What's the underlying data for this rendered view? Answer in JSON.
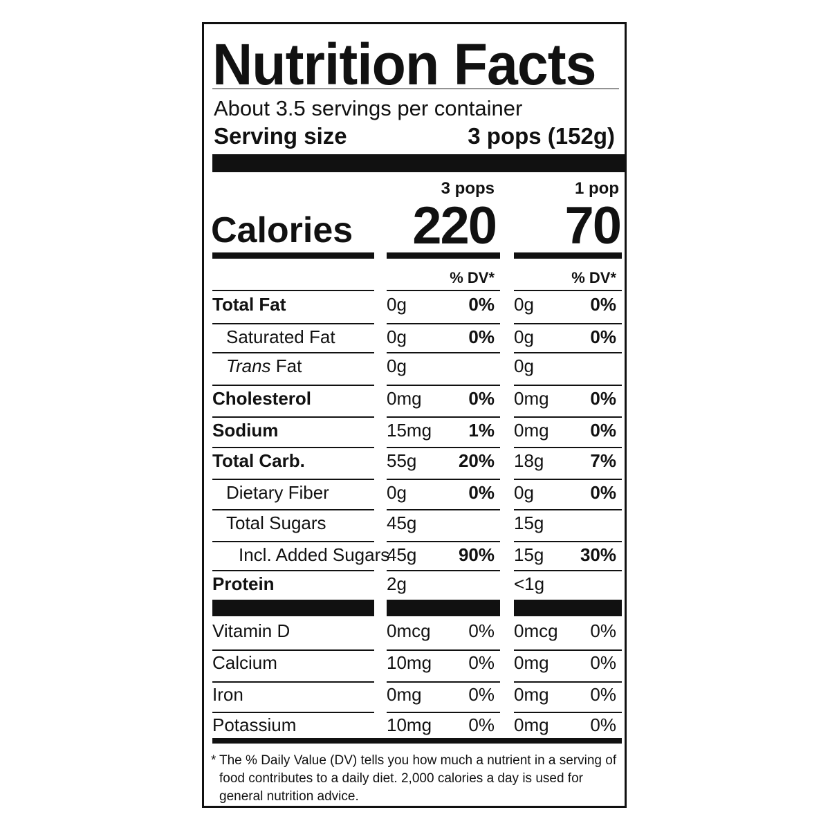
{
  "title": "Nutrition Facts",
  "servings_per_container": "About 3.5 servings per container",
  "serving_size_label": "Serving size",
  "serving_size_value": "3 pops (152g)",
  "columns": [
    {
      "header": "3 pops",
      "calories": "220"
    },
    {
      "header": "1 pop",
      "calories": "70"
    }
  ],
  "calories_label": "Calories",
  "dv_header": "% DV*",
  "nutrients": [
    {
      "name": "Total Fat",
      "bold": true,
      "indent": 0,
      "c1": {
        "amount": "0g",
        "dv": "0%"
      },
      "c2": {
        "amount": "0g",
        "dv": "0%"
      }
    },
    {
      "name": "Saturated Fat",
      "bold": false,
      "indent": 1,
      "c1": {
        "amount": "0g",
        "dv": "0%"
      },
      "c2": {
        "amount": "0g",
        "dv": "0%"
      }
    },
    {
      "name_italic": "Trans",
      "name": " Fat",
      "bold": false,
      "indent": 1,
      "c1": {
        "amount": "0g",
        "dv": ""
      },
      "c2": {
        "amount": "0g",
        "dv": ""
      }
    },
    {
      "name": "Cholesterol",
      "bold": true,
      "indent": 0,
      "c1": {
        "amount": "0mg",
        "dv": "0%"
      },
      "c2": {
        "amount": "0mg",
        "dv": "0%"
      }
    },
    {
      "name": "Sodium",
      "bold": true,
      "indent": 0,
      "c1": {
        "amount": "15mg",
        "dv": "1%"
      },
      "c2": {
        "amount": "0mg",
        "dv": "0%"
      }
    },
    {
      "name": "Total Carb.",
      "bold": true,
      "indent": 0,
      "c1": {
        "amount": "55g",
        "dv": "20%"
      },
      "c2": {
        "amount": "18g",
        "dv": "7%"
      }
    },
    {
      "name": "Dietary Fiber",
      "bold": false,
      "indent": 1,
      "c1": {
        "amount": "0g",
        "dv": "0%"
      },
      "c2": {
        "amount": "0g",
        "dv": "0%"
      }
    },
    {
      "name": "Total Sugars",
      "bold": false,
      "indent": 1,
      "c1": {
        "amount": "45g",
        "dv": ""
      },
      "c2": {
        "amount": "15g",
        "dv": ""
      }
    },
    {
      "name": "Incl. Added Sugars",
      "bold": false,
      "indent": 2,
      "c1": {
        "amount": "45g",
        "dv": "90%"
      },
      "c2": {
        "amount": "15g",
        "dv": "30%"
      }
    },
    {
      "name": "Protein",
      "bold": true,
      "indent": 0,
      "c1": {
        "amount": "2g",
        "dv": ""
      },
      "c2": {
        "amount": "<1g",
        "dv": ""
      }
    }
  ],
  "vitamins": [
    {
      "name": "Vitamin D",
      "c1": {
        "amount": "0mcg",
        "dv": "0%"
      },
      "c2": {
        "amount": "0mcg",
        "dv": "0%"
      }
    },
    {
      "name": "Calcium",
      "c1": {
        "amount": "10mg",
        "dv": "0%"
      },
      "c2": {
        "amount": "0mg",
        "dv": "0%"
      }
    },
    {
      "name": "Iron",
      "c1": {
        "amount": "0mg",
        "dv": "0%"
      },
      "c2": {
        "amount": "0mg",
        "dv": "0%"
      }
    },
    {
      "name": "Potassium",
      "c1": {
        "amount": "10mg",
        "dv": "0%"
      },
      "c2": {
        "amount": "0mg",
        "dv": "0%"
      }
    }
  ],
  "footnote_star": "*",
  "footnote": "The % Daily Value (DV) tells you how much a nutrient in a serving of food contributes to a daily diet. 2,000 calories a day is used for general nutrition advice."
}
